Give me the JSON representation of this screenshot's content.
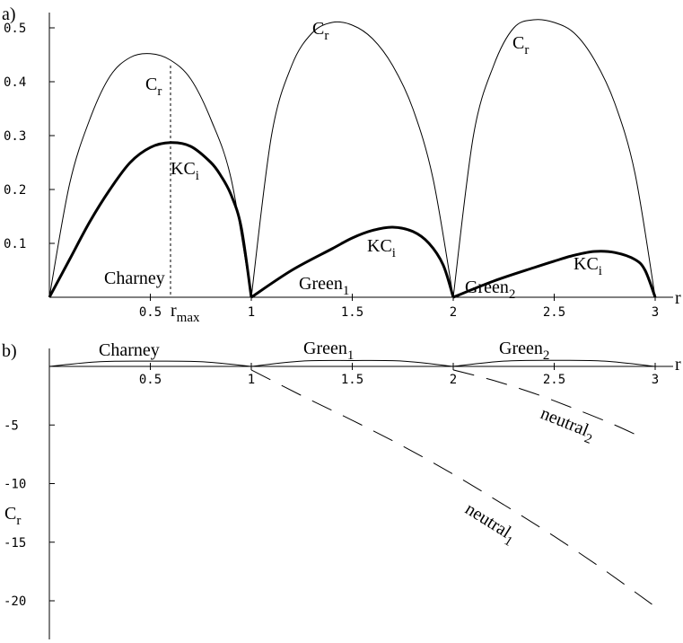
{
  "chart_data": [
    {
      "panel": "a)",
      "type": "line",
      "xlabel": "r",
      "xlim": [
        0,
        3
      ],
      "ylim": [
        0,
        0.5
      ],
      "xticks": [
        "0.5",
        "1",
        "1.5",
        "2",
        "2.5",
        "3"
      ],
      "yticks": [
        "0.1",
        "0.2",
        "0.3",
        "0.4",
        "0.5"
      ],
      "series": [
        {
          "name": "C_r",
          "label": "C",
          "sub": "r",
          "style": "thin",
          "x": [
            0,
            0.1,
            0.2,
            0.3,
            0.4,
            0.5,
            0.6,
            0.7,
            0.8,
            0.9,
            1.0
          ],
          "y": [
            0,
            0.21,
            0.33,
            0.41,
            0.445,
            0.452,
            0.44,
            0.405,
            0.33,
            0.22,
            0
          ]
        },
        {
          "name": "C_r",
          "label": "C",
          "sub": "r",
          "style": "thin",
          "x": [
            1.0,
            1.1,
            1.2,
            1.3,
            1.4,
            1.5,
            1.6,
            1.7,
            1.8,
            1.9,
            2.0
          ],
          "y": [
            0,
            0.3,
            0.43,
            0.49,
            0.51,
            0.505,
            0.48,
            0.43,
            0.35,
            0.22,
            0
          ]
        },
        {
          "name": "C_r",
          "label": "C",
          "sub": "r",
          "style": "thin",
          "x": [
            2.0,
            2.1,
            2.2,
            2.3,
            2.4,
            2.5,
            2.6,
            2.7,
            2.8,
            2.9,
            3.0
          ],
          "y": [
            0,
            0.3,
            0.43,
            0.5,
            0.515,
            0.51,
            0.49,
            0.44,
            0.36,
            0.23,
            0
          ]
        },
        {
          "name": "KC_i",
          "label": "KC",
          "sub": "i",
          "style": "thick",
          "x": [
            0,
            0.1,
            0.2,
            0.3,
            0.4,
            0.5,
            0.6,
            0.7,
            0.8,
            0.85,
            0.9,
            0.95,
            1.0
          ],
          "y": [
            0,
            0.07,
            0.14,
            0.2,
            0.25,
            0.278,
            0.287,
            0.28,
            0.25,
            0.225,
            0.19,
            0.13,
            0
          ]
        },
        {
          "name": "KC_i",
          "label": "KC",
          "sub": "i",
          "style": "thick",
          "x": [
            1.0,
            1.2,
            1.4,
            1.5,
            1.6,
            1.7,
            1.8,
            1.88,
            1.95,
            2.0
          ],
          "y": [
            0,
            0.05,
            0.09,
            0.11,
            0.124,
            0.13,
            0.122,
            0.1,
            0.06,
            0
          ]
        },
        {
          "name": "KC_i",
          "label": "KC",
          "sub": "i",
          "style": "thick",
          "x": [
            2.0,
            2.2,
            2.4,
            2.5,
            2.6,
            2.7,
            2.8,
            2.9,
            2.95,
            3.0
          ],
          "y": [
            0,
            0.03,
            0.055,
            0.067,
            0.078,
            0.085,
            0.083,
            0.07,
            0.05,
            0
          ]
        }
      ],
      "reference_line": {
        "x": 0.6,
        "y_top": 0.43,
        "label": "r",
        "sub": "max"
      },
      "annotations": [
        {
          "text": "Charney",
          "sub": ""
        },
        {
          "text": "Green",
          "sub": "1"
        },
        {
          "text": "Green",
          "sub": "2"
        }
      ]
    },
    {
      "panel": "b)",
      "type": "line",
      "xlabel": "r",
      "ylabel": "C",
      "ylabel_sub": "r",
      "xlim": [
        0,
        3
      ],
      "ylim": [
        -22,
        1
      ],
      "xticks": [
        "0.5",
        "1",
        "1.5",
        "2",
        "2.5",
        "3"
      ],
      "yticks": [
        "-5",
        "-10",
        "-15",
        "-20"
      ],
      "series": [
        {
          "name": "C_r",
          "style": "thin",
          "x": [
            0,
            0.25,
            0.5,
            0.75,
            1.0
          ],
          "y": [
            0,
            0.4,
            0.45,
            0.4,
            0
          ]
        },
        {
          "name": "C_r",
          "style": "thin",
          "x": [
            1.0,
            1.25,
            1.5,
            1.75,
            2.0
          ],
          "y": [
            0,
            0.45,
            0.5,
            0.45,
            0
          ]
        },
        {
          "name": "C_r",
          "style": "thin",
          "x": [
            2.0,
            2.25,
            2.5,
            2.75,
            3.0
          ],
          "y": [
            0,
            0.45,
            0.52,
            0.45,
            0
          ]
        },
        {
          "name": "neutral_1",
          "label": "neutral",
          "sub": "1",
          "style": "dashed",
          "x": [
            1.0,
            1.25,
            1.5,
            1.75,
            2.0,
            2.25,
            2.5,
            2.75,
            3.0
          ],
          "y": [
            -0.3,
            -2.5,
            -4.6,
            -6.8,
            -9.2,
            -11.8,
            -14.5,
            -17.4,
            -20.5
          ]
        },
        {
          "name": "neutral_2",
          "label": "neutral",
          "sub": "2",
          "style": "dashed",
          "x": [
            2.0,
            2.2,
            2.4,
            2.6,
            2.8,
            2.95
          ],
          "y": [
            -0.3,
            -1.2,
            -2.3,
            -3.6,
            -5.0,
            -6.2
          ]
        }
      ],
      "annotations": [
        {
          "text": "Charney",
          "sub": ""
        },
        {
          "text": "Green",
          "sub": "1"
        },
        {
          "text": "Green",
          "sub": "2"
        }
      ]
    }
  ]
}
